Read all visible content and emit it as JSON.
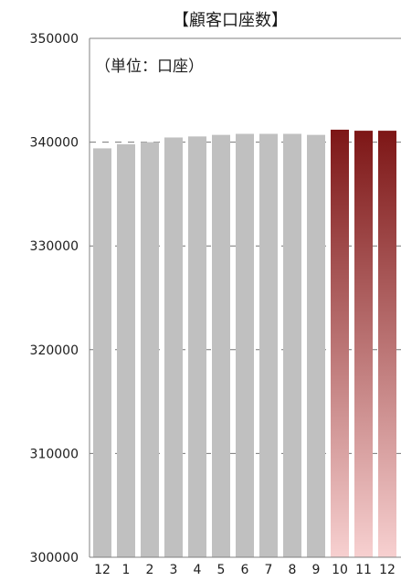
{
  "chart_data": {
    "type": "bar",
    "title": "【顧客口座数】",
    "unit_label": "（単位：口座）",
    "xlabel": "",
    "ylabel": "",
    "ylim": [
      300000,
      350000
    ],
    "y_ticks": [
      "300000",
      "310000",
      "320000",
      "330000",
      "340000",
      "350000"
    ],
    "categories": [
      "12",
      "1",
      "2",
      "3",
      "4",
      "5",
      "6",
      "7",
      "8",
      "9",
      "10",
      "11",
      "12"
    ],
    "values": [
      339400,
      339800,
      340000,
      340450,
      340550,
      340700,
      340800,
      340800,
      340800,
      340700,
      341200,
      341100,
      341100
    ],
    "grid": true,
    "legend": "none",
    "colors": {
      "gray": "#c0c0c0",
      "red_top": "#7d1616",
      "red_bottom": "#f7d0d0",
      "axis": "#808080",
      "grid": "#777777"
    }
  }
}
